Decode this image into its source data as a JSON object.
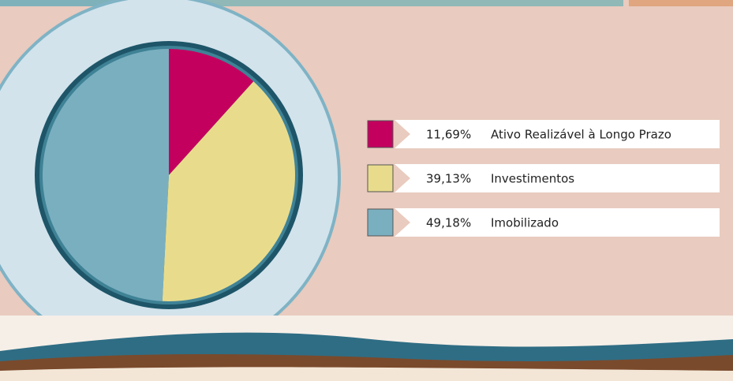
{
  "chart_data": {
    "type": "pie",
    "categories": [
      "Ativo Realizável à Longo Prazo",
      "Investimentos",
      "Imobilizado"
    ],
    "values": [
      11.69,
      39.13,
      49.18
    ],
    "value_labels": [
      "11,69%",
      "39,13%",
      "49,18%"
    ],
    "colors": [
      "#c4005e",
      "#e8dc8c",
      "#7aafc0"
    ]
  }
}
